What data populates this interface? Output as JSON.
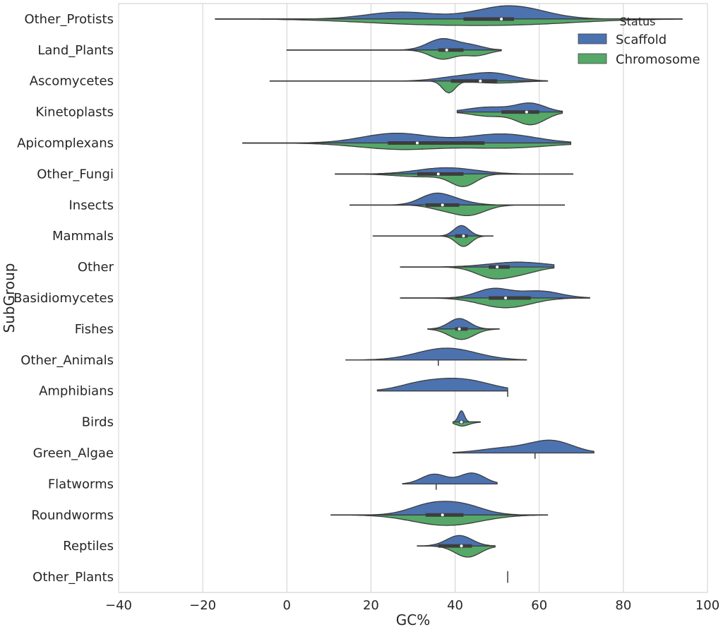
{
  "chart_data": {
    "type": "violin",
    "split": true,
    "orientation": "horizontal",
    "title": "",
    "xlabel": "GC%",
    "ylabel": "SubGroup",
    "xlim": [
      -40,
      100
    ],
    "xticks": [
      -40,
      -20,
      0,
      20,
      40,
      60,
      80,
      100
    ],
    "grid": "vertical",
    "legend": {
      "title": "Status",
      "placement": "top-right",
      "entries": [
        {
          "name": "Scaffold",
          "color": "#4c72b0"
        },
        {
          "name": "Chromosome",
          "color": "#55a868"
        }
      ]
    },
    "categories": [
      "Other_Protists",
      "Land_Plants",
      "Ascomycetes",
      "Kinetoplasts",
      "Apicomplexans",
      "Other_Fungi",
      "Insects",
      "Mammals",
      "Other",
      "Basidiomycetes",
      "Fishes",
      "Other_Animals",
      "Amphibians",
      "Birds",
      "Green_Algae",
      "Flatworms",
      "Roundworms",
      "Reptiles",
      "Other_Plants"
    ],
    "violins": [
      {
        "category": "Other_Protists",
        "scaffold": {
          "min": -17,
          "max": 94,
          "peaks": [
            [
              27,
              0.5,
              8
            ],
            [
              53,
              0.95,
              8
            ]
          ]
        },
        "chromosome": {
          "min": -17,
          "max": 94,
          "peaks": [
            [
              30,
              0.3,
              15
            ],
            [
              55,
              0.35,
              15
            ]
          ]
        },
        "q1": 42,
        "median": 51,
        "q3": 54
      },
      {
        "category": "Land_Plants",
        "scaffold": {
          "min": 0,
          "max": 51,
          "peaks": [
            [
              37,
              0.8,
              3.5
            ],
            [
              44,
              0.3,
              3
            ]
          ]
        },
        "chromosome": {
          "min": 0,
          "max": 51,
          "peaks": [
            [
              37,
              0.65,
              3
            ],
            [
              45,
              0.4,
              3
            ]
          ]
        },
        "q1": 36,
        "median": 38,
        "q3": 42
      },
      {
        "category": "Ascomycetes",
        "scaffold": {
          "min": -4,
          "max": 62,
          "peaks": [
            [
              40,
              0.25,
              5
            ],
            [
              49,
              0.55,
              5
            ]
          ]
        },
        "chromosome": {
          "min": -4,
          "max": 62,
          "peaks": [
            [
              38.5,
              0.85,
              1.5
            ],
            [
              50,
              0.15,
              5
            ]
          ]
        },
        "q1": 39,
        "median": 46,
        "q3": 50
      },
      {
        "category": "Kinetoplasts",
        "scaffold": {
          "min": 40.5,
          "max": 65.5,
          "peaks": [
            [
              58,
              0.6,
              3.5
            ],
            [
              48,
              0.35,
              5
            ]
          ]
        },
        "chromosome": {
          "min": 40.5,
          "max": 65.5,
          "peaks": [
            [
              58,
              0.9,
              3.5
            ],
            [
              48,
              0.3,
              4
            ]
          ]
        },
        "q1": 51,
        "median": 57,
        "q3": 60
      },
      {
        "category": "Apicomplexans",
        "scaffold": {
          "min": -10.5,
          "max": 67.5,
          "peaks": [
            [
              26,
              0.7,
              8
            ],
            [
              51,
              0.65,
              8
            ]
          ]
        },
        "chromosome": {
          "min": -10.5,
          "max": 67.5,
          "peaks": [
            [
              27,
              0.45,
              10
            ],
            [
              52,
              0.35,
              10
            ]
          ]
        },
        "q1": 24,
        "median": 31,
        "q3": 47
      },
      {
        "category": "Other_Fungi",
        "scaffold": {
          "min": 11.5,
          "max": 68,
          "peaks": [
            [
              38,
              0.45,
              7
            ]
          ]
        },
        "chromosome": {
          "min": 11.5,
          "max": 68,
          "peaks": [
            [
              42,
              0.85,
              3
            ],
            [
              32,
              0.2,
              6
            ]
          ]
        },
        "q1": 31,
        "median": 36,
        "q3": 42
      },
      {
        "category": "Insects",
        "scaffold": {
          "min": 15,
          "max": 66,
          "peaks": [
            [
              35,
              0.7,
              3.5
            ],
            [
              40,
              0.3,
              4
            ]
          ]
        },
        "chromosome": {
          "min": 15,
          "max": 66,
          "peaks": [
            [
              43,
              0.75,
              4
            ],
            [
              36,
              0.2,
              3
            ]
          ]
        },
        "q1": 33,
        "median": 37,
        "q3": 41
      },
      {
        "category": "Mammals",
        "scaffold": {
          "min": 20.5,
          "max": 49,
          "peaks": [
            [
              41.5,
              0.75,
              1.8
            ]
          ]
        },
        "chromosome": {
          "min": 20.5,
          "max": 49,
          "peaks": [
            [
              42,
              0.75,
              1.8
            ]
          ]
        },
        "q1": 40,
        "median": 42,
        "q3": 43
      },
      {
        "category": "Other",
        "scaffold": {
          "min": 27,
          "max": 63.5,
          "peaks": [
            [
              55,
              0.35,
              7
            ]
          ]
        },
        "chromosome": {
          "min": 27,
          "max": 63.5,
          "peaks": [
            [
              49,
              0.75,
              4
            ],
            [
              56,
              0.4,
              4
            ]
          ]
        },
        "q1": 48,
        "median": 50,
        "q3": 53
      },
      {
        "category": "Basidiomycetes",
        "scaffold": {
          "min": 27,
          "max": 72,
          "peaks": [
            [
              49,
              0.65,
              4
            ],
            [
              60,
              0.5,
              5
            ]
          ]
        },
        "chromosome": {
          "min": 27,
          "max": 72,
          "peaks": [
            [
              52,
              0.7,
              6
            ]
          ]
        },
        "q1": 48,
        "median": 52,
        "q3": 58
      },
      {
        "category": "Fishes",
        "scaffold": {
          "min": 33.5,
          "max": 50.5,
          "peaks": [
            [
              41,
              0.75,
              2.5
            ]
          ]
        },
        "chromosome": {
          "min": 33.5,
          "max": 50.5,
          "peaks": [
            [
              41.5,
              0.75,
              3
            ]
          ]
        },
        "q1": 40,
        "median": 41,
        "q3": 43
      },
      {
        "category": "Other_Animals",
        "scaffold": {
          "min": 14,
          "max": 57,
          "peaks": [
            [
              38,
              0.85,
              7
            ]
          ]
        },
        "chromosome": {
          "min": 36,
          "max": 36,
          "peaks": []
        },
        "q1": null,
        "median": null,
        "q3": null
      },
      {
        "category": "Amphibians",
        "scaffold": {
          "min": 21.5,
          "max": 52.5,
          "peaks": [
            [
              41,
              0.85,
              7
            ],
            [
              31,
              0.35,
              5
            ]
          ]
        },
        "chromosome": {
          "min": 52.5,
          "max": 52.5,
          "peaks": []
        },
        "q1": null,
        "median": null,
        "q3": null
      },
      {
        "category": "Birds",
        "scaffold": {
          "min": 39.5,
          "max": 46,
          "peaks": [
            [
              41.5,
              0.8,
              0.7
            ]
          ]
        },
        "chromosome": {
          "min": 39.5,
          "max": 46,
          "peaks": [
            [
              41.5,
              0.2,
              1.4
            ],
            [
              42.5,
              0.1,
              2
            ]
          ]
        },
        "q1": 41,
        "median": 41.5,
        "q3": 42
      },
      {
        "category": "Green_Algae",
        "scaffold": {
          "min": 39.5,
          "max": 73,
          "peaks": [
            [
              63,
              0.85,
              5
            ],
            [
              52,
              0.35,
              6
            ]
          ]
        },
        "chromosome": {
          "min": 59,
          "max": 59,
          "peaks": []
        },
        "q1": null,
        "median": null,
        "q3": null
      },
      {
        "category": "Flatworms",
        "scaffold": {
          "min": 27.5,
          "max": 50,
          "peaks": [
            [
              35,
              0.7,
              3
            ],
            [
              44,
              0.78,
              3
            ]
          ]
        },
        "chromosome": {
          "min": 35.5,
          "max": 35.5,
          "peaks": []
        },
        "q1": null,
        "median": null,
        "q3": null
      },
      {
        "category": "Roundworms",
        "scaffold": {
          "min": 10.5,
          "max": 62,
          "peaks": [
            [
              34,
              0.7,
              5
            ],
            [
              42,
              0.65,
              5
            ]
          ]
        },
        "chromosome": {
          "min": 10.5,
          "max": 62,
          "peaks": [
            [
              38,
              0.75,
              8
            ]
          ]
        },
        "q1": 33,
        "median": 37,
        "q3": 42
      },
      {
        "category": "Reptiles",
        "scaffold": {
          "min": 31,
          "max": 49.5,
          "peaks": [
            [
              41,
              0.75,
              3
            ]
          ]
        },
        "chromosome": {
          "min": 31,
          "max": 49.5,
          "peaks": [
            [
              43,
              0.8,
              3
            ]
          ]
        },
        "q1": 36,
        "median": 41.5,
        "q3": 44
      },
      {
        "category": "Other_Plants",
        "scaffold": {
          "min": 52.5,
          "max": 52.5,
          "peaks": []
        },
        "chromosome": {
          "min": 52.5,
          "max": 52.5,
          "peaks": []
        },
        "q1": null,
        "median": null,
        "q3": null
      }
    ]
  }
}
